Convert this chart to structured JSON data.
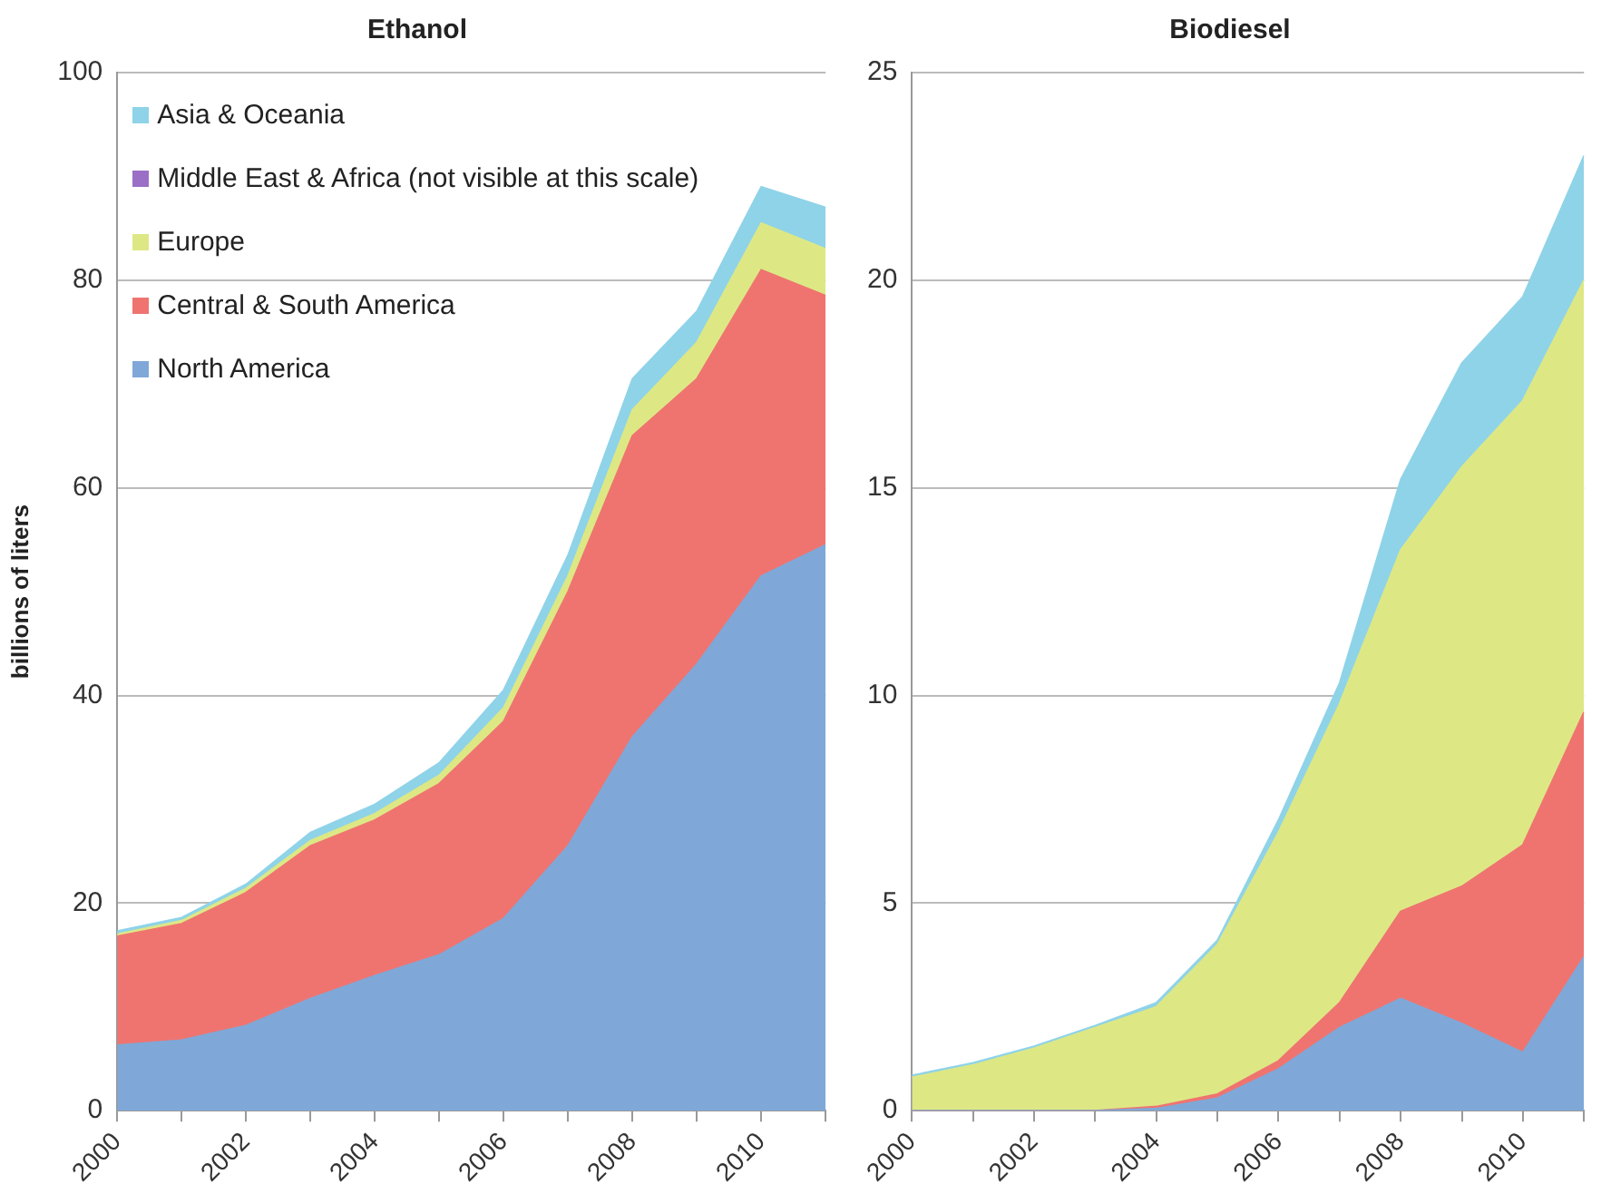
{
  "chart_data": [
    {
      "type": "area",
      "title": "Ethanol",
      "ylabel": "billions of liters",
      "stacked": true,
      "legend": "top left",
      "grid": "y",
      "x": [
        2000,
        2001,
        2002,
        2003,
        2004,
        2005,
        2006,
        2007,
        2008,
        2009,
        2010,
        2011
      ],
      "xlim": [
        2000,
        2011
      ],
      "xticks": [
        2000,
        {
          "value": 2001,
          "label": null
        },
        2002,
        {
          "value": 2003,
          "label": null
        },
        2004,
        {
          "value": 2005,
          "label": null
        },
        2006,
        {
          "value": 2007,
          "label": null
        },
        2008,
        {
          "value": 2009,
          "label": null
        },
        2010,
        {
          "value": 2011,
          "label": null
        }
      ],
      "ylim": [
        0,
        100
      ],
      "yticks": [
        0,
        20,
        40,
        60,
        80,
        100
      ],
      "series": [
        {
          "name": "North America",
          "color": "#7fa8d8",
          "values": [
            6.3,
            6.8,
            8.2,
            10.8,
            13,
            15,
            18.5,
            25.5,
            36,
            43,
            51.5,
            54.5
          ]
        },
        {
          "name": "Central & South America",
          "color": "#ef7470",
          "values": [
            10.5,
            11.2,
            12.8,
            14.7,
            15,
            16.5,
            19,
            24.5,
            29,
            27.5,
            29.5,
            24
          ]
        },
        {
          "name": "Europe",
          "color": "#dde885",
          "values": [
            0.2,
            0.3,
            0.4,
            0.5,
            0.6,
            0.8,
            1.3,
            1.5,
            2.5,
            3.5,
            4.5,
            4.5
          ]
        },
        {
          "name": "Middle East & Africa (not visible at this scale)",
          "color": "#9b6fc6",
          "values": [
            null,
            null,
            null,
            null,
            null,
            null,
            null,
            null,
            null,
            null,
            null,
            null
          ]
        },
        {
          "name": "Asia & Oceania",
          "color": "#8fd3e8",
          "values": [
            0.3,
            0.3,
            0.4,
            0.8,
            0.9,
            1.2,
            1.7,
            2,
            3,
            3,
            3.5,
            4
          ]
        }
      ]
    },
    {
      "type": "area",
      "title": "Biodiesel",
      "stacked": true,
      "grid": "y",
      "x": [
        2000,
        2001,
        2002,
        2003,
        2004,
        2005,
        2006,
        2007,
        2008,
        2009,
        2010,
        2011
      ],
      "xlim": [
        2000,
        2011
      ],
      "xticks": [
        2000,
        {
          "value": 2001,
          "label": null
        },
        2002,
        {
          "value": 2003,
          "label": null
        },
        2004,
        {
          "value": 2005,
          "label": null
        },
        2006,
        {
          "value": 2007,
          "label": null
        },
        2008,
        {
          "value": 2009,
          "label": null
        },
        2010,
        {
          "value": 2011,
          "label": null
        }
      ],
      "ylim": [
        0,
        25
      ],
      "yticks": [
        0,
        5,
        10,
        15,
        20,
        25
      ],
      "series": [
        {
          "color": "#7fa8d8",
          "values": [
            0,
            0,
            0,
            0,
            0.05,
            0.3,
            1,
            2,
            2.7,
            2.1,
            1.4,
            3.7
          ]
        },
        {
          "color": "#ef7470",
          "values": [
            0,
            0,
            0,
            0,
            0.05,
            0.1,
            0.2,
            0.6,
            2.1,
            3.3,
            5,
            5.9
          ]
        },
        {
          "color": "#dde885",
          "values": [
            0.8,
            1.1,
            1.5,
            2,
            2.4,
            3.6,
            5.5,
            7.2,
            8.7,
            10.1,
            10.7,
            10.4
          ]
        },
        {
          "color": "#8fd3e8",
          "values": [
            0.05,
            0.05,
            0.05,
            0.05,
            0.1,
            0.1,
            0.3,
            0.5,
            1.7,
            2.5,
            2.5,
            3
          ]
        }
      ]
    }
  ]
}
